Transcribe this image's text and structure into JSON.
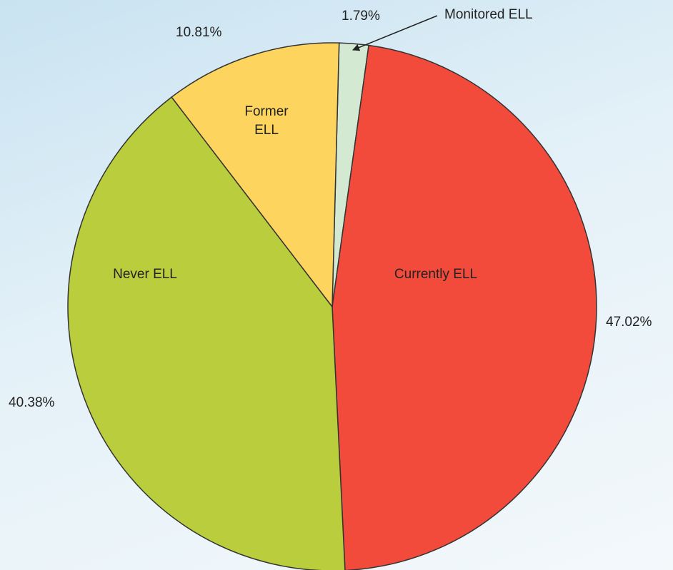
{
  "chart_data": {
    "type": "pie",
    "categories": [
      "Monitored ELL",
      "Currently ELL",
      "Never ELL",
      "Former ELL"
    ],
    "values": [
      1.79,
      47.02,
      40.38,
      10.81
    ],
    "value_labels": [
      "1.79%",
      "47.02%",
      "40.38%",
      "10.81%"
    ],
    "colors": [
      "#d3e9d2",
      "#f24b3b",
      "#b9cd3d",
      "#fdd45e"
    ]
  }
}
